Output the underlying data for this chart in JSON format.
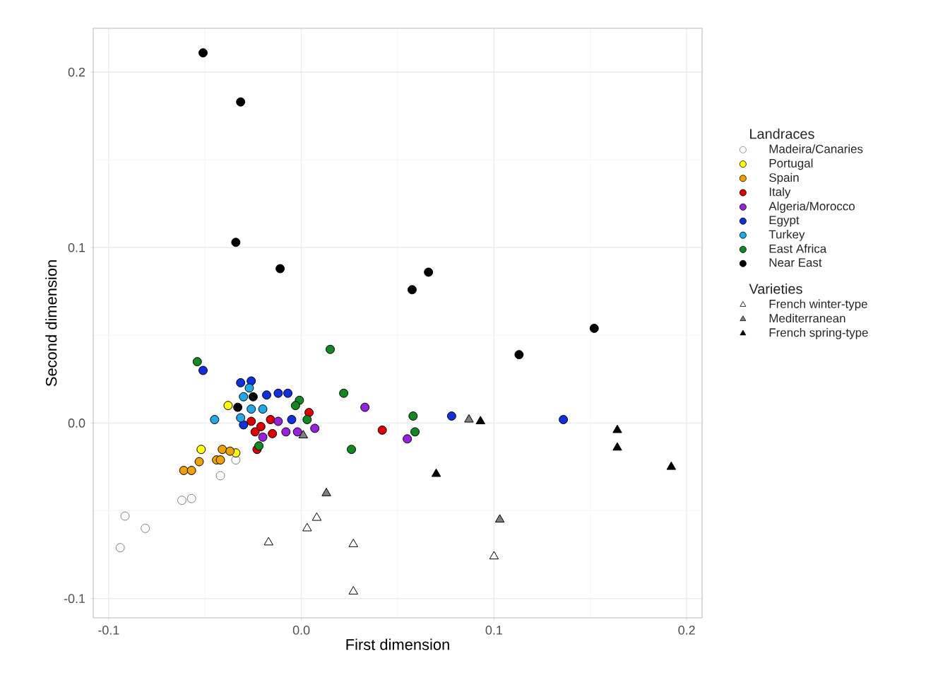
{
  "chart_data": {
    "type": "scatter",
    "xlabel": "First dimension",
    "ylabel": "Second dimension",
    "legend_title": [
      "Landraces",
      "Varieties"
    ],
    "legend": "right",
    "grid": true,
    "xlim": [
      -0.108,
      0.208
    ],
    "ylim": [
      -0.111,
      0.225
    ],
    "xticks": [
      -0.1,
      {
        "value": 0,
        "label": "0.0"
      },
      0.1,
      0.2
    ],
    "yticks": [
      -0.1,
      {
        "value": 0,
        "label": "0.0"
      },
      0.1,
      0.2
    ],
    "series": [
      {
        "name": "Madeira/Canaries",
        "color": "#ffffff",
        "marker": "circle",
        "x": [
          -0.034,
          -0.042,
          -0.062,
          -0.057,
          -0.0915,
          -0.081,
          -0.094
        ],
        "values": [
          -0.021,
          -0.03,
          -0.044,
          -0.043,
          -0.053,
          -0.06,
          -0.071
        ]
      },
      {
        "name": "Portugal",
        "color": "#ffff00",
        "marker": "circle",
        "x": [
          -0.038,
          -0.052,
          -0.034
        ],
        "values": [
          0.01,
          -0.015,
          -0.017
        ]
      },
      {
        "name": "Spain",
        "color": "#f0a000",
        "marker": "circle",
        "x": [
          -0.061,
          -0.057,
          -0.053,
          -0.044,
          -0.041,
          -0.042,
          -0.037
        ],
        "values": [
          -0.027,
          -0.027,
          -0.022,
          -0.021,
          -0.015,
          -0.021,
          -0.016
        ]
      },
      {
        "name": "Italy",
        "color": "#e00000",
        "marker": "circle",
        "x": [
          -0.026,
          -0.024,
          -0.021,
          -0.015,
          -0.016,
          -0.023,
          0.004,
          0.042
        ],
        "values": [
          0.001,
          -0.005,
          -0.002,
          -0.006,
          0.002,
          -0.015,
          0.006,
          -0.004
        ]
      },
      {
        "name": "Algeria/Morocco",
        "color": "#9a20e0",
        "marker": "circle",
        "x": [
          -0.012,
          -0.008,
          -0.002,
          0.007,
          -0.02,
          0.033,
          0.055
        ],
        "values": [
          0.001,
          -0.005,
          -0.005,
          -0.003,
          -0.008,
          0.009,
          -0.009
        ]
      },
      {
        "name": "Egypt",
        "color": "#1030e0",
        "marker": "circle",
        "x": [
          -0.051,
          -0.0315,
          -0.026,
          -0.018,
          -0.012,
          -0.007,
          -0.005,
          0.078,
          0.136,
          -0.03
        ],
        "values": [
          0.03,
          0.023,
          0.024,
          0.016,
          0.017,
          0.017,
          0.002,
          0.004,
          0.002,
          -0.001
        ]
      },
      {
        "name": "Turkey",
        "color": "#20a8e8",
        "marker": "circle",
        "x": [
          -0.045,
          -0.03,
          -0.027,
          -0.02,
          -0.0315,
          -0.026
        ],
        "values": [
          0.002,
          0.015,
          0.02,
          0.008,
          0.003,
          0.008
        ]
      },
      {
        "name": "East Africa",
        "color": "#108a20",
        "marker": "circle",
        "x": [
          -0.054,
          0.015,
          0.022,
          -0.001,
          -0.003,
          0.003,
          0.026,
          0.058,
          0.059,
          -0.022
        ],
        "values": [
          0.035,
          0.042,
          0.017,
          0.013,
          0.01,
          0.002,
          -0.015,
          0.004,
          -0.005,
          -0.013
        ]
      },
      {
        "name": "Near East",
        "color": "#000000",
        "marker": "circle",
        "x": [
          -0.051,
          -0.0315,
          -0.034,
          -0.011,
          0.066,
          0.152,
          0.113,
          0.0575,
          -0.025,
          -0.033
        ],
        "values": [
          0.211,
          0.183,
          0.103,
          0.088,
          0.086,
          0.054,
          0.039,
          0.076,
          0.015,
          0.009
        ]
      },
      {
        "name": "French winter-type",
        "color": "#ffffff",
        "marker": "triangle",
        "x": [
          -0.017,
          0.003,
          0.008,
          0.027,
          0.027,
          0.1
        ],
        "values": [
          -0.068,
          -0.06,
          -0.054,
          -0.069,
          -0.096,
          -0.076
        ]
      },
      {
        "name": "Mediterranean",
        "color": "#808080",
        "marker": "triangle",
        "x": [
          0.013,
          0.103,
          0.001,
          0.087
        ],
        "values": [
          -0.04,
          -0.055,
          -0.007,
          0.002
        ]
      },
      {
        "name": "French spring-type",
        "color": "#000000",
        "marker": "triangle",
        "x": [
          0.07,
          0.192,
          0.164,
          0.164,
          0.093
        ],
        "values": [
          -0.029,
          -0.025,
          -0.004,
          -0.014,
          0.001
        ]
      }
    ]
  }
}
